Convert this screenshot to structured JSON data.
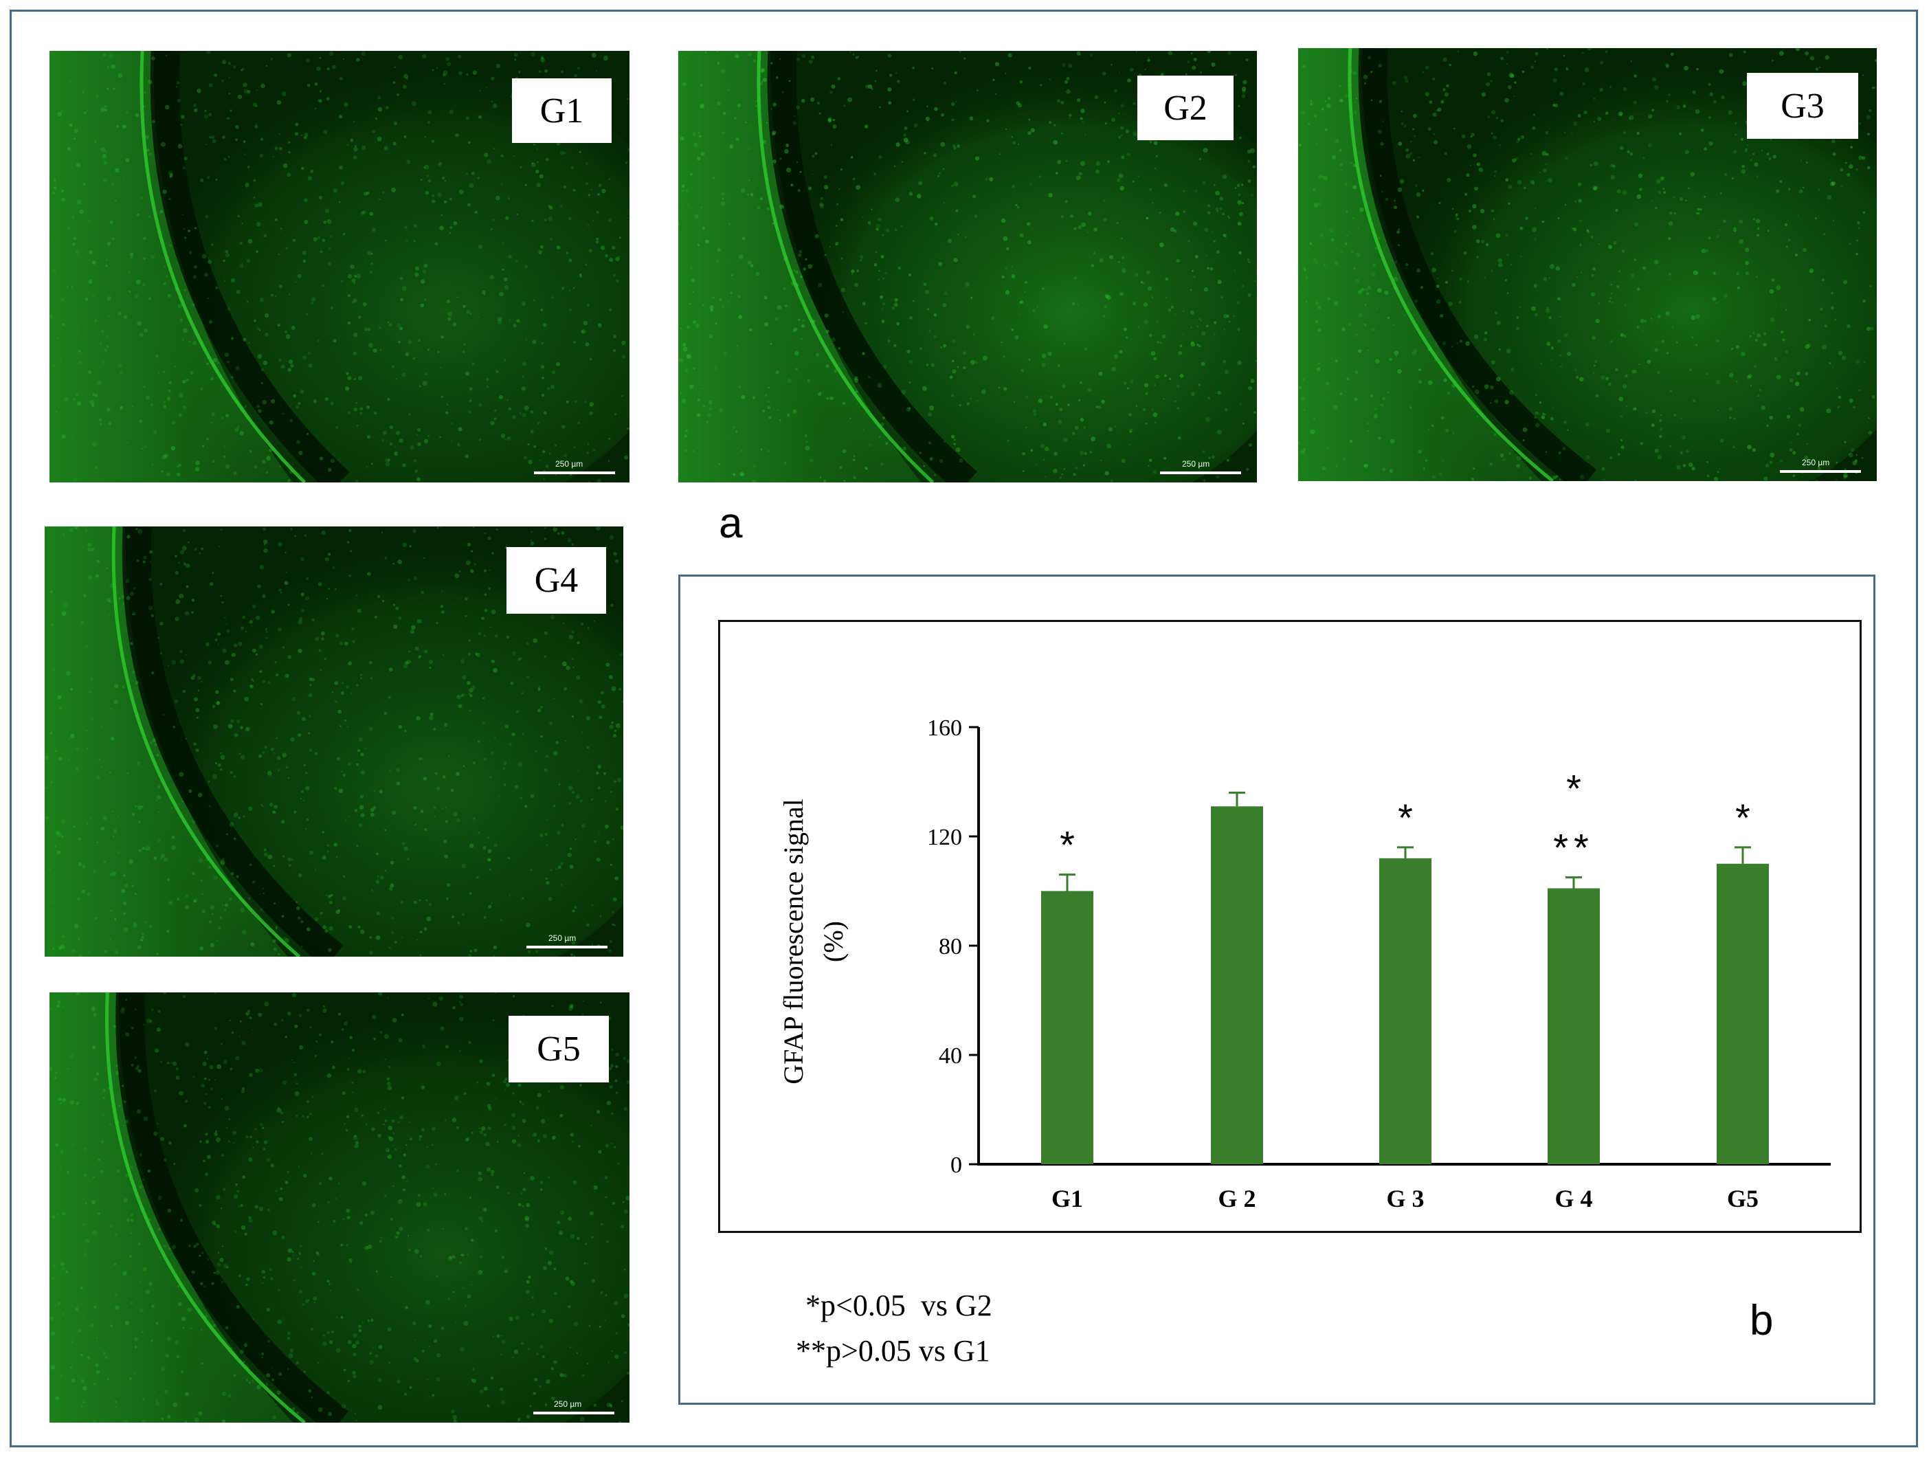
{
  "panels": {
    "a": {
      "letter": "a"
    },
    "b": {
      "letter": "b"
    },
    "images": [
      {
        "label": "G1",
        "scale": "250 µm"
      },
      {
        "label": "G2",
        "scale": "250 µm"
      },
      {
        "label": "G3",
        "scale": "250 µm"
      },
      {
        "label": "G4",
        "scale": "250 µm"
      },
      {
        "label": "G5",
        "scale": "250 µm"
      }
    ]
  },
  "colors": {
    "bar": "#3a7e2c",
    "stain": "#2ecc2e",
    "frame": "#4a6a8a"
  },
  "chart_data": {
    "type": "bar",
    "categories": [
      "G1",
      "G 2",
      "G 3",
      "G 4",
      "G5"
    ],
    "values": [
      100,
      131,
      112,
      101,
      110
    ],
    "errors": [
      6,
      5,
      4,
      4,
      6
    ],
    "ylabel": "GFAP fluorescence signal\n(%)",
    "ylabel_lines": [
      "GFAP fluorescence signal",
      "(%)"
    ],
    "ylim": [
      0,
      160
    ],
    "yticks": [
      0,
      40,
      80,
      120,
      160
    ],
    "significance": [
      {
        "category": "G1",
        "marks": [
          "*"
        ]
      },
      {
        "category": "G 2",
        "marks": []
      },
      {
        "category": "G 3",
        "marks": [
          "*"
        ]
      },
      {
        "category": "G 4",
        "marks": [
          "**",
          "*"
        ]
      },
      {
        "category": "G5",
        "marks": [
          "*"
        ]
      }
    ],
    "notes": [
      "*p<0.05  vs G2",
      "**p>0.05 vs G1"
    ]
  }
}
